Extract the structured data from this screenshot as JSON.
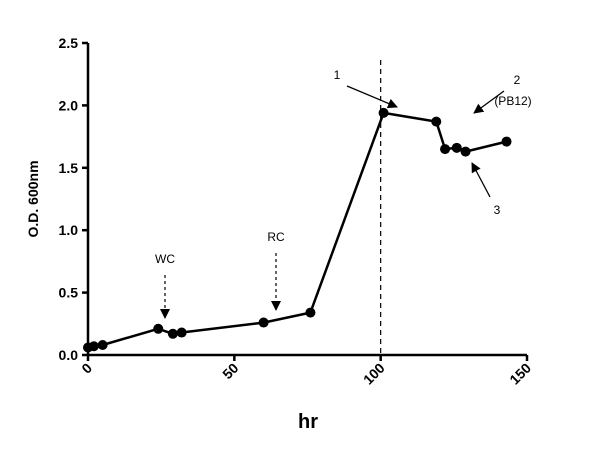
{
  "chart_data": {
    "type": "line",
    "xlabel": "hr",
    "ylabel": "O.D. 600nm",
    "xlim": [
      0,
      150
    ],
    "ylim": [
      0,
      2.5
    ],
    "x_ticks": [
      0,
      50,
      100,
      150
    ],
    "y_ticks": [
      0.0,
      0.5,
      1.0,
      1.5,
      2.0,
      2.5
    ],
    "x_tick_labels": [
      "0",
      "50",
      "100",
      "150"
    ],
    "y_tick_labels": [
      "0.0",
      "0.5",
      "1.0",
      "1.5",
      "2.0",
      "2.5"
    ],
    "grid": false,
    "legend": "none",
    "vertical_line_x": 100,
    "series": [
      {
        "color": "#000000",
        "points": [
          {
            "x": 0,
            "y": 0.06
          },
          {
            "x": 2,
            "y": 0.07
          },
          {
            "x": 5,
            "y": 0.08
          },
          {
            "x": 24,
            "y": 0.21
          },
          {
            "x": 29,
            "y": 0.17
          },
          {
            "x": 32,
            "y": 0.18
          },
          {
            "x": 60,
            "y": 0.26
          },
          {
            "x": 76,
            "y": 0.34
          },
          {
            "x": 101,
            "y": 1.94
          },
          {
            "x": 119,
            "y": 1.87
          },
          {
            "x": 122,
            "y": 1.65
          },
          {
            "x": 126,
            "y": 1.66
          },
          {
            "x": 129,
            "y": 1.63
          },
          {
            "x": 143,
            "y": 1.71
          }
        ]
      }
    ],
    "annotations": [
      {
        "id": "wc",
        "text": "WC",
        "style": "dashed-arrow"
      },
      {
        "id": "rc",
        "text": "RC",
        "style": "dashed-arrow"
      },
      {
        "id": "a1",
        "text": "1",
        "style": "arrow"
      },
      {
        "id": "a2",
        "text": "2",
        "style": "arrow"
      },
      {
        "id": "a2sub",
        "text": "(PB12)",
        "style": "label"
      },
      {
        "id": "a3",
        "text": "3",
        "style": "arrow"
      }
    ]
  }
}
